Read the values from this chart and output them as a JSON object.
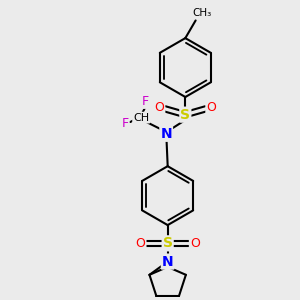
{
  "bg_color": "#ebebeb",
  "bond_color": "#000000",
  "bond_width": 1.5,
  "N_color": "#0000ff",
  "S_color": "#cccc00",
  "O_color": "#ff0000",
  "F_color": "#cc00cc",
  "C_color": "#000000",
  "fig_size": [
    3.0,
    3.0
  ],
  "dpi": 100,
  "xlim": [
    0,
    10
  ],
  "ylim": [
    0,
    10
  ]
}
